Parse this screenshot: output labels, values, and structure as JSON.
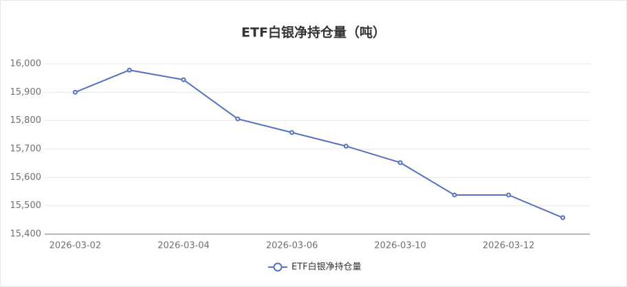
{
  "chart_data": {
    "type": "line",
    "title": "ETF白银净持仓量（吨）",
    "categories": [
      "2026-03-02",
      null,
      "2026-03-04",
      null,
      "2026-03-06",
      null,
      "2026-03-10",
      null,
      "2026-03-12",
      null
    ],
    "series": [
      {
        "name": "ETF白银净持仓量",
        "color": "#5470c6",
        "values": [
          15900,
          15978,
          15944,
          15806,
          15758,
          15710,
          15652,
          15538,
          15538,
          15458
        ]
      }
    ],
    "ylim": [
      15400,
      16000
    ],
    "yticks": [
      {
        "value": 15400,
        "label": "15,400"
      },
      {
        "value": 15500,
        "label": "15,500"
      },
      {
        "value": 15600,
        "label": "15,600"
      },
      {
        "value": 15700,
        "label": "15,700"
      },
      {
        "value": 15800,
        "label": "15,800"
      },
      {
        "value": 15900,
        "label": "15,900"
      },
      {
        "value": 16000,
        "label": "16,000"
      }
    ],
    "grid": true
  }
}
